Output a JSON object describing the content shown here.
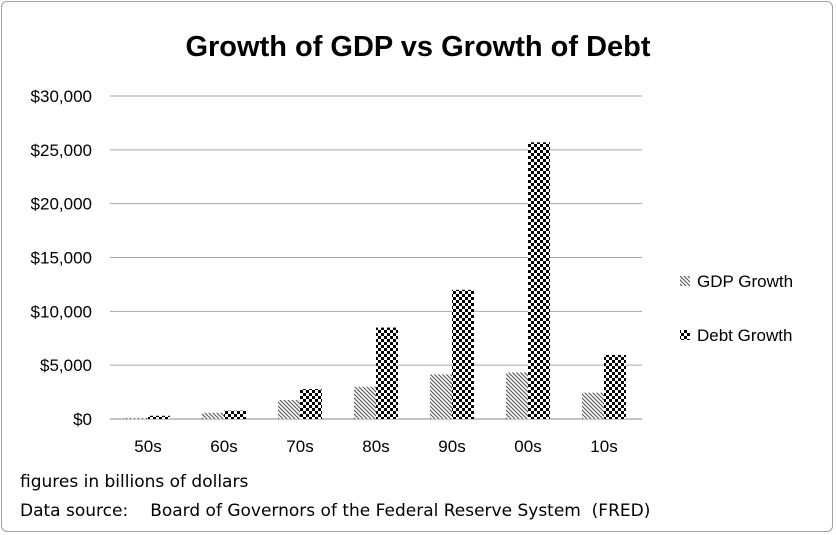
{
  "chart_data": {
    "type": "bar",
    "title": "Growth of GDP vs Growth of Debt",
    "xlabel": "",
    "ylabel": "",
    "categories": [
      "50s",
      "60s",
      "70s",
      "80s",
      "90s",
      "00s",
      "10s"
    ],
    "series": [
      {
        "name": "GDP Growth",
        "pattern": "diagonal-hatch",
        "values": [
          100,
          580,
          1760,
          2990,
          4140,
          4320,
          2440
        ]
      },
      {
        "name": "Debt Growth",
        "pattern": "checkerboard",
        "values": [
          300,
          770,
          2780,
          8490,
          12000,
          25700,
          5950
        ]
      }
    ],
    "ylim": [
      0,
      30000
    ],
    "yticks": [
      0,
      5000,
      10000,
      15000,
      20000,
      25000,
      30000
    ],
    "ytick_labels": [
      "$0",
      "$5,000",
      "$10,000",
      "$15,000",
      "$20,000",
      "$25,000",
      "$30,000"
    ],
    "grid": "horizontal",
    "legend": "right",
    "colors": {
      "bars": "#000000",
      "grid": "#a6a6a6"
    }
  },
  "notes": {
    "units": "figures in billions of dollars",
    "source_label": "Data source:",
    "source": "Board of Governors of the Federal Reserve System  (FRED)"
  }
}
